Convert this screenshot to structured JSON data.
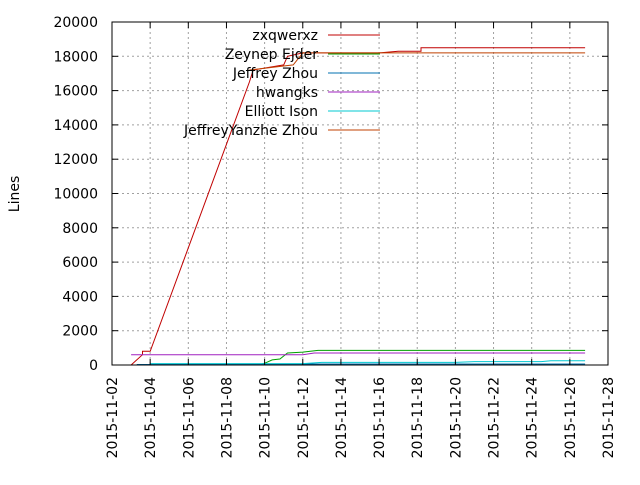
{
  "chart_data": {
    "type": "line",
    "ylabel": "Lines",
    "ylim": [
      0,
      20000
    ],
    "yticks": [
      0,
      2000,
      4000,
      6000,
      8000,
      10000,
      12000,
      14000,
      16000,
      18000,
      20000
    ],
    "xlim": [
      "2015-11-02",
      "2015-11-28"
    ],
    "xticks": [
      "2015-11-02",
      "2015-11-04",
      "2015-11-06",
      "2015-11-08",
      "2015-11-10",
      "2015-11-12",
      "2015-11-14",
      "2015-11-16",
      "2015-11-18",
      "2015-11-20",
      "2015-11-22",
      "2015-11-24",
      "2015-11-26",
      "2015-11-28"
    ],
    "grid": true,
    "legend_position": "top-right",
    "series": [
      {
        "name": "zxqwerxz",
        "color": "#c00000",
        "points": [
          [
            "2015-11-03",
            0
          ],
          [
            "2015-11-03.6",
            600
          ],
          [
            "2015-11-03.6",
            800
          ],
          [
            "2015-11-04",
            800
          ],
          [
            "2015-11-09.2",
            16500
          ],
          [
            "2015-11-09.4",
            17200
          ],
          [
            "2015-11-11",
            17500
          ],
          [
            "2015-11-11.2",
            18000
          ],
          [
            "2015-11-12",
            18200
          ],
          [
            "2015-11-16",
            18200
          ],
          [
            "2015-11-17",
            18300
          ],
          [
            "2015-11-18.2",
            18300
          ],
          [
            "2015-11-18.2",
            18500
          ],
          [
            "2015-11-26.8",
            18500
          ]
        ]
      },
      {
        "name": "Zeynep Ejder",
        "color": "#00a000",
        "points": [
          [
            "2015-11-09.6",
            0
          ],
          [
            "2015-11-10",
            100
          ],
          [
            "2015-11-10.4",
            300
          ],
          [
            "2015-11-10.8",
            350
          ],
          [
            "2015-11-11.2",
            700
          ],
          [
            "2015-11-12",
            750
          ],
          [
            "2015-11-12.8",
            850
          ],
          [
            "2015-11-26.8",
            850
          ]
        ]
      },
      {
        "name": "Jeffrey Zhou",
        "color": "#0070b0",
        "points": [
          [
            "2015-11-03.3",
            30
          ],
          [
            "2015-11-11.5",
            30
          ],
          [
            "2015-11-11.5",
            60
          ],
          [
            "2015-11-26.8",
            60
          ]
        ]
      },
      {
        "name": "hwangks",
        "color": "#a020c0",
        "points": [
          [
            "2015-11-03",
            600
          ],
          [
            "2015-11-12",
            600
          ],
          [
            "2015-11-12.6",
            700
          ],
          [
            "2015-11-26.8",
            700
          ]
        ]
      },
      {
        "name": "Elliott Ison",
        "color": "#00c8d0",
        "points": [
          [
            "2015-11-04",
            80
          ],
          [
            "2015-11-12",
            80
          ],
          [
            "2015-11-13",
            150
          ],
          [
            "2015-11-20",
            150
          ],
          [
            "2015-11-21",
            200
          ],
          [
            "2015-11-24.5",
            200
          ],
          [
            "2015-11-25",
            250
          ],
          [
            "2015-11-26.8",
            250
          ]
        ]
      },
      {
        "name": "JeffreyYanzhe Zhou",
        "color": "#c04000",
        "points": [
          [
            "2015-11-09.2",
            17200
          ],
          [
            "2015-11-11.5",
            17500
          ],
          [
            "2015-11-12",
            18200
          ],
          [
            "2015-11-26.8",
            18200
          ]
        ]
      }
    ]
  }
}
